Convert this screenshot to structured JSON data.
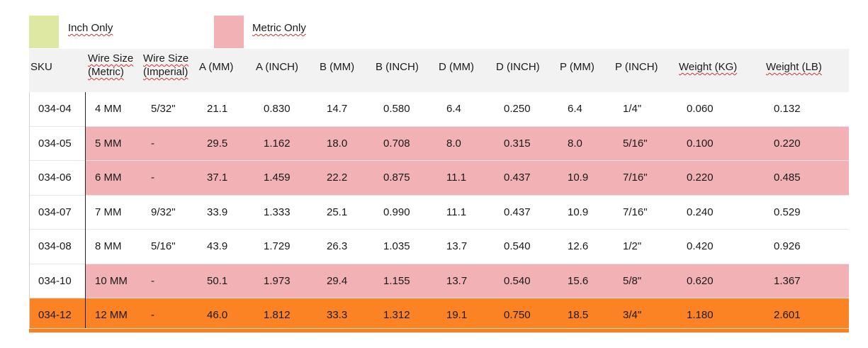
{
  "colors": {
    "inch_only": "#dfe8a2",
    "metric_only": "#f2b1b4",
    "highlight": "#fb8323",
    "header_bg": "#f2f2f2"
  },
  "legend": {
    "inch_label": "Inch Only",
    "metric_label": "Metric Only"
  },
  "headers": {
    "sku": "SKU",
    "wire_metric_1": "Wire Size",
    "wire_metric_2": "(Metric)",
    "wire_imperial_1": "Wire Size",
    "wire_imperial_2": "(Imperial)",
    "a_mm": "A (MM)",
    "a_inch": "A (INCH)",
    "b_mm": "B (MM)",
    "b_inch": "B (INCH)",
    "d_mm": "D (MM)",
    "d_inch": "D (INCH)",
    "p_mm": "P (MM)",
    "p_inch": "P (INCH)",
    "weight_kg": "Weight (KG)",
    "weight_lb": "Weight (LB)"
  },
  "rows": [
    {
      "sku": "034-04",
      "wire_metric": "4 MM",
      "wire_imperial": "5/32\"",
      "a_mm": "21.1",
      "a_inch": "0.830",
      "b_mm": "14.7",
      "b_inch": "0.580",
      "d_mm": "6.4",
      "d_inch": "0.250",
      "p_mm": "6.4",
      "p_inch": "1/4\"",
      "weight_kg": "0.060",
      "weight_lb": "0.132",
      "style": "none"
    },
    {
      "sku": "034-05",
      "wire_metric": "5 MM",
      "wire_imperial": "-",
      "a_mm": "29.5",
      "a_inch": "1.162",
      "b_mm": "18.0",
      "b_inch": "0.708",
      "d_mm": "8.0",
      "d_inch": "0.315",
      "p_mm": "8.0",
      "p_inch": "5/16\"",
      "weight_kg": "0.100",
      "weight_lb": "0.220",
      "style": "metric"
    },
    {
      "sku": "034-06",
      "wire_metric": "6 MM",
      "wire_imperial": "-",
      "a_mm": "37.1",
      "a_inch": "1.459",
      "b_mm": "22.2",
      "b_inch": "0.875",
      "d_mm": "11.1",
      "d_inch": "0.437",
      "p_mm": "10.9",
      "p_inch": "7/16\"",
      "weight_kg": "0.220",
      "weight_lb": "0.485",
      "style": "metric"
    },
    {
      "sku": "034-07",
      "wire_metric": "7 MM",
      "wire_imperial": "9/32\"",
      "a_mm": "33.9",
      "a_inch": "1.333",
      "b_mm": "25.1",
      "b_inch": "0.990",
      "d_mm": "11.1",
      "d_inch": "0.437",
      "p_mm": "10.9",
      "p_inch": "7/16\"",
      "weight_kg": "0.240",
      "weight_lb": "0.529",
      "style": "none"
    },
    {
      "sku": "034-08",
      "wire_metric": "8 MM",
      "wire_imperial": "5/16\"",
      "a_mm": "43.9",
      "a_inch": "1.729",
      "b_mm": "26.3",
      "b_inch": "1.035",
      "d_mm": "13.7",
      "d_inch": "0.540",
      "p_mm": "12.6",
      "p_inch": "1/2\"",
      "weight_kg": "0.420",
      "weight_lb": "0.926",
      "style": "none"
    },
    {
      "sku": "034-10",
      "wire_metric": "10 MM",
      "wire_imperial": "-",
      "a_mm": "50.1",
      "a_inch": "1.973",
      "b_mm": "29.4",
      "b_inch": "1.155",
      "d_mm": "13.7",
      "d_inch": "0.540",
      "p_mm": "15.6",
      "p_inch": "5/8\"",
      "weight_kg": "0.620",
      "weight_lb": "1.367",
      "style": "metric"
    },
    {
      "sku": "034-12",
      "wire_metric": "12 MM",
      "wire_imperial": "-",
      "a_mm": "46.0",
      "a_inch": "1.812",
      "b_mm": "33.3",
      "b_inch": "1.312",
      "d_mm": "19.1",
      "d_inch": "0.750",
      "p_mm": "18.5",
      "p_inch": "3/4\"",
      "weight_kg": "1.180",
      "weight_lb": "2.601",
      "style": "highlight"
    }
  ]
}
